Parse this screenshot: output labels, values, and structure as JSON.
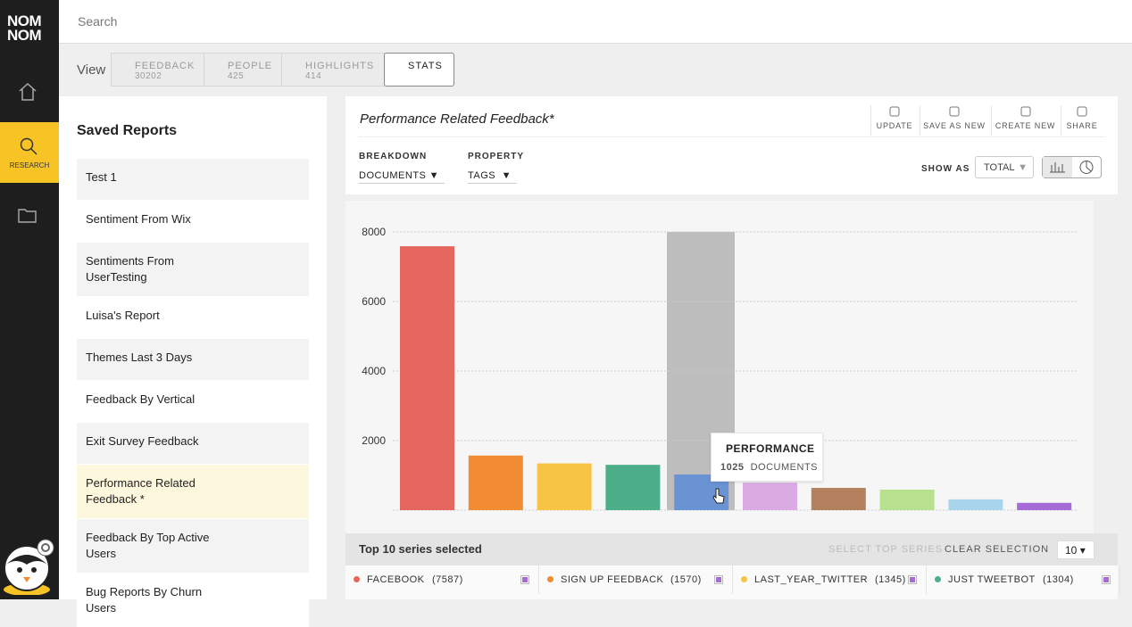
{
  "app": {
    "logo": [
      "NOM",
      "NOM"
    ],
    "nav_active": "RESEARCH"
  },
  "search": {
    "placeholder": "Search"
  },
  "view": {
    "label": "View",
    "tabs": [
      {
        "label": "FEEDBACK",
        "count": 30202
      },
      {
        "label": "PEOPLE",
        "count": 425
      },
      {
        "label": "HIGHLIGHTS",
        "count": 414
      },
      {
        "label": "STATS"
      }
    ]
  },
  "saved_reports": {
    "title": "Saved Reports",
    "items": [
      "Test 1",
      "Sentiment From Wix",
      "Sentiments From UserTesting",
      "Luisa's Report",
      "Themes Last 3 Days",
      "Feedback By Vertical",
      "Exit Survey Feedback",
      "Performance Related Feedback *",
      "Feedback By Top Active Users",
      "Bug Reports By Churn Users"
    ]
  },
  "report": {
    "title": "Performance Related Feedback*",
    "actions": [
      "UPDATE",
      "SAVE AS NEW",
      "CREATE NEW",
      "SHARE"
    ],
    "breakdown": {
      "label": "BREAKDOWN",
      "value": "DOCUMENTS"
    },
    "property": {
      "label": "PROPERTY",
      "value": "TAGS"
    },
    "show_as": {
      "label": "SHOW AS",
      "value": "TOTAL"
    }
  },
  "chart_data": {
    "type": "bar",
    "categories": [
      "FACEBOOK",
      "SIGN UP FEEDBACK",
      "LAST_YEAR_TWITTER",
      "JUST TWEETBOT",
      "PERFORMANCE",
      null,
      null,
      null,
      null,
      null
    ],
    "values": [
      7587,
      1570,
      1345,
      1304,
      1025,
      790,
      640,
      590,
      310,
      210
    ],
    "value_labels": [
      "(7587)",
      "(1570)",
      "(1345)",
      "(1304)",
      null,
      null,
      null,
      null,
      null,
      null
    ],
    "colors": [
      "#e5675f",
      "#f28c33",
      "#f8c446",
      "#4daf8a",
      "#6a93d4",
      "#d9abe2",
      "#b3815e",
      "#b7e08f",
      "#a9d5ec",
      "#a66bd6"
    ],
    "ylim": [
      0,
      8000
    ],
    "yticks": [
      2000,
      4000,
      6000,
      8000
    ],
    "grid": true
  },
  "tooltip": {
    "unit": "DOCUMENTS"
  },
  "series_panel": {
    "summary": "Top 10 series selected",
    "select_top": "SELECT TOP SERIES",
    "clear": "CLEAR SELECTION",
    "count": "10"
  }
}
